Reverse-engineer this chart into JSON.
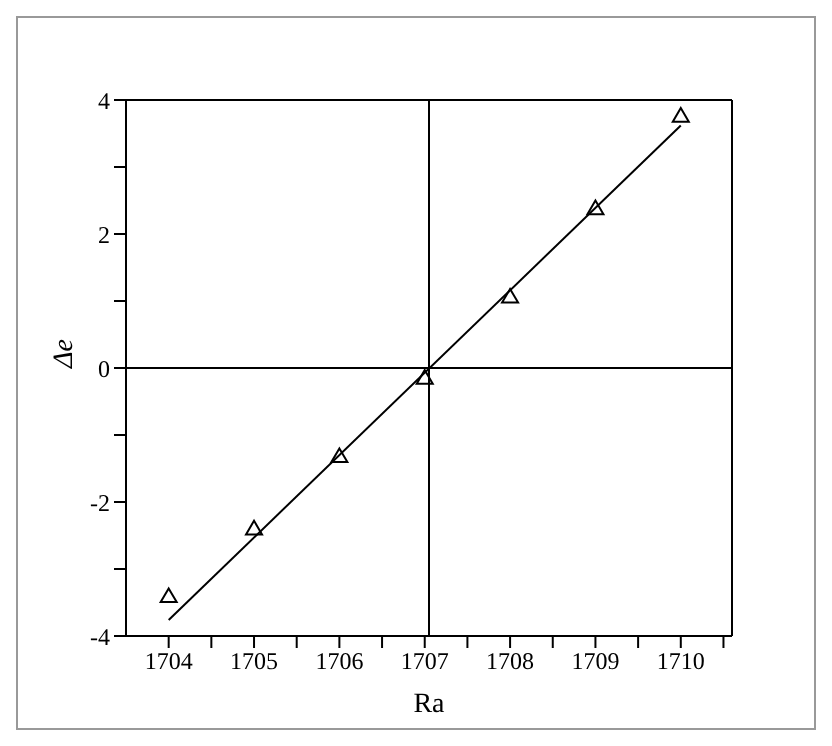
{
  "chart_data": {
    "type": "scatter",
    "xlabel": "Ra",
    "ylabel": "Δe",
    "xlim": [
      1703.5,
      1710.6
    ],
    "xticks": [
      1704,
      {
        "value": 1704.5,
        "label": null
      },
      1705,
      {
        "value": 1705.5,
        "label": null
      },
      1706,
      {
        "value": 1706.5,
        "label": null
      },
      1707,
      {
        "value": 1707.5,
        "label": null
      },
      1708,
      {
        "value": 1708.5,
        "label": null
      },
      1709,
      {
        "value": 1709.5,
        "label": null
      },
      1710,
      {
        "value": 1710.5,
        "label": null
      }
    ],
    "ylim": [
      -4,
      4
    ],
    "yticks": [
      -4,
      {
        "value": -3,
        "label": null
      },
      -2,
      {
        "value": -1,
        "label": null
      },
      0,
      {
        "value": 1,
        "label": null
      },
      2,
      {
        "value": 3,
        "label": null
      },
      4
    ],
    "grid": false,
    "ref_lines": [
      {
        "axis": "x",
        "value": 1707.05,
        "color": "#000000"
      },
      {
        "axis": "y",
        "value": 0,
        "color": "#000000"
      }
    ],
    "series": [
      {
        "color": "#000000",
        "marker": "triangle",
        "x": [
          1704,
          1705,
          1706,
          1707,
          1708,
          1709,
          1710
        ],
        "values": [
          -3.41,
          -2.4,
          -1.32,
          -0.15,
          1.06,
          2.38,
          3.76
        ]
      },
      {
        "type": "line",
        "color": "#000000",
        "marker": "none",
        "line_style": "solid",
        "x": [
          1704,
          1710
        ],
        "values": [
          -3.76,
          3.62
        ]
      }
    ]
  }
}
